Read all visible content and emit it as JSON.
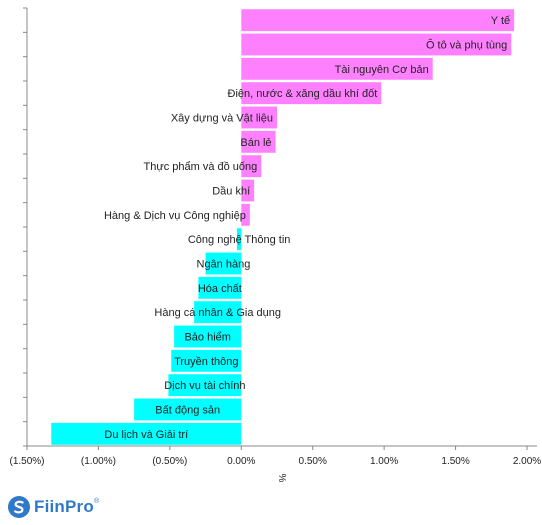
{
  "chart_data": {
    "type": "bar",
    "orientation": "horizontal",
    "categories": [
      "Y tế",
      "Ô tô và phụ tùng",
      "Tài nguyên Cơ bản",
      "Điện, nước & xăng dầu khí đốt",
      "Xây dựng và Vật liệu",
      "Bán lẻ",
      "Thực phẩm và đồ uống",
      "Dầu khí",
      "Hàng & Dịch vụ Công nghiệp",
      "Công nghệ Thông tin",
      "Ngân hàng",
      "Hóa chất",
      "Hàng cá nhân & Gia dụng",
      "Bảo hiểm",
      "Truyền thông",
      "Dịch vụ tài chính",
      "Bất động sản",
      "Du lịch và Giải trí"
    ],
    "values": [
      1.91,
      1.89,
      1.34,
      0.98,
      0.25,
      0.24,
      0.14,
      0.09,
      0.06,
      -0.03,
      -0.25,
      -0.3,
      -0.33,
      -0.47,
      -0.49,
      -0.51,
      -0.75,
      -1.33
    ],
    "xlabel": "%",
    "xlim": [
      -1.5,
      2.0
    ],
    "xticks": [
      -1.5,
      -1.0,
      -0.5,
      0.0,
      0.5,
      1.0,
      1.5,
      2.0
    ],
    "xtick_labels": [
      "(1.50%)",
      "(1.00%)",
      "(0.50%)",
      "0.00%",
      "0.50%",
      "1.00%",
      "1.50%",
      "2.00%"
    ],
    "grid": false,
    "legend": "none",
    "colors": {
      "positive": "#ff80ff",
      "negative": "#00ffff",
      "axis": "#888888"
    }
  },
  "logo": {
    "brand": "FiinPro",
    "mark": "®",
    "color": "#2f79c8"
  }
}
